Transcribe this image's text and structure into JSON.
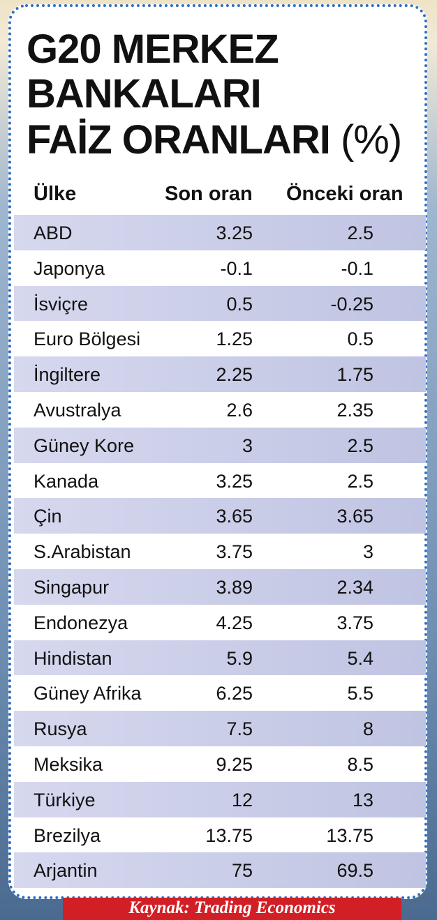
{
  "header": {
    "title": [
      "G20 MERKEZ",
      "BANKALARI",
      "FAİZ ORANLARI"
    ],
    "unit": "(%)"
  },
  "table": {
    "columns": [
      "Ülke",
      "Son oran",
      "Önceki oran"
    ],
    "rows": [
      [
        "ABD",
        3.25,
        2.5
      ],
      [
        "Japonya",
        -0.1,
        -0.1
      ],
      [
        "İsviçre",
        0.5,
        -0.25
      ],
      [
        "Euro Bölgesi",
        1.25,
        0.5
      ],
      [
        "İngiltere",
        2.25,
        1.75
      ],
      [
        "Avustralya",
        2.6,
        2.35
      ],
      [
        "Güney Kore",
        3,
        2.5
      ],
      [
        "Kanada",
        3.25,
        2.5
      ],
      [
        "Çin",
        3.65,
        3.65
      ],
      [
        "S.Arabistan",
        3.75,
        3
      ],
      [
        "Singapur",
        3.89,
        2.34
      ],
      [
        "Endonezya",
        4.25,
        3.75
      ],
      [
        "Hindistan",
        5.9,
        5.4
      ],
      [
        "Güney Afrika",
        6.25,
        5.5
      ],
      [
        "Rusya",
        7.5,
        8
      ],
      [
        "Meksika",
        9.25,
        8.5
      ],
      [
        "Türkiye",
        12,
        13
      ],
      [
        "Brezilya",
        13.75,
        13.75
      ],
      [
        "Arjantin",
        75,
        69.5
      ]
    ]
  },
  "footer": {
    "source": "Kaynak: Trading Economics"
  }
}
